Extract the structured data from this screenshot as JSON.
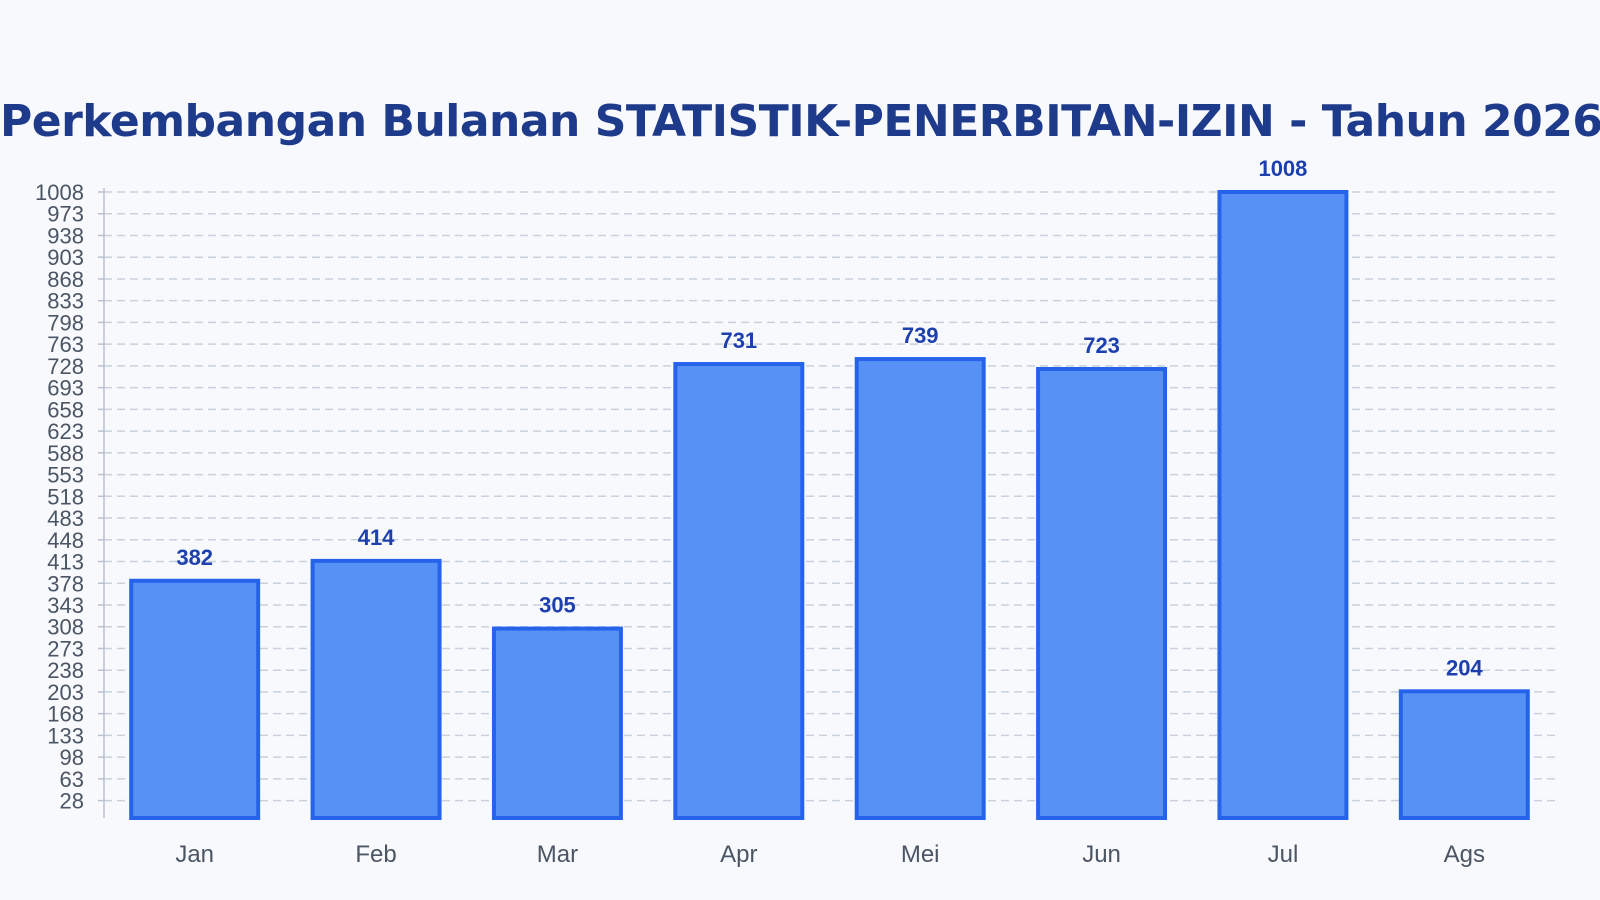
{
  "chart_data": {
    "type": "bar",
    "title": "Perkembangan Bulanan STATISTIK-PENERBITAN-IZIN - Tahun 2026",
    "categories": [
      "Jan",
      "Feb",
      "Mar",
      "Apr",
      "Mei",
      "Jun",
      "Jul",
      "Ags"
    ],
    "values": [
      382,
      414,
      305,
      731,
      739,
      723,
      1008,
      204
    ],
    "yticks": [
      28,
      63,
      98,
      133,
      168,
      203,
      238,
      273,
      308,
      343,
      378,
      413,
      448,
      483,
      518,
      553,
      588,
      623,
      658,
      693,
      728,
      763,
      798,
      833,
      868,
      903,
      938,
      973,
      1008
    ],
    "ylim": [
      0,
      1008
    ],
    "xlabel": "",
    "ylabel": "",
    "grid": true,
    "colors": {
      "bar_fill": "#5891f5",
      "bar_stroke": "#2563eb",
      "data_label": "#1e40af",
      "title": "#1e3a8a",
      "grid": "#c9d1dc",
      "axis": "#b8c2d0"
    }
  }
}
